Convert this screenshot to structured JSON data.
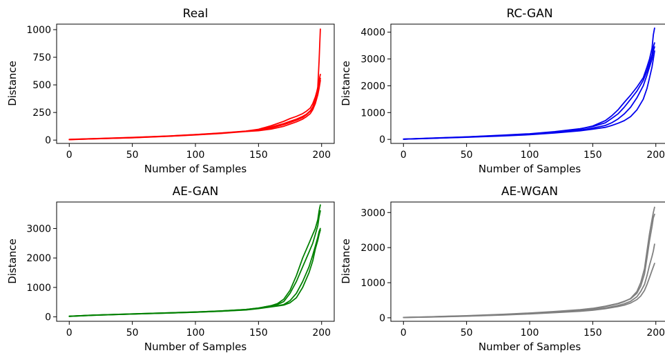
{
  "chart_data": [
    {
      "type": "line",
      "title": "Real",
      "xlabel": "Number of Samples",
      "ylabel": "Distance",
      "xlim": [
        -10,
        210
      ],
      "ylim": [
        -30,
        1050
      ],
      "xticks": [
        0,
        50,
        100,
        150,
        200
      ],
      "yticks": [
        0,
        250,
        500,
        750,
        1000
      ],
      "color": "#ff0000",
      "series": [
        {
          "x": [
            0,
            20,
            50,
            80,
            100,
            120,
            140,
            150,
            160,
            170,
            175,
            180,
            185,
            188,
            191,
            193,
            195,
            197,
            198,
            199
          ],
          "y": [
            5,
            12,
            22,
            36,
            48,
            62,
            80,
            92,
            118,
            150,
            170,
            190,
            215,
            235,
            265,
            300,
            360,
            480,
            720,
            1005
          ]
        },
        {
          "x": [
            0,
            20,
            50,
            80,
            100,
            120,
            140,
            150,
            160,
            170,
            175,
            180,
            185,
            188,
            191,
            193,
            195,
            197,
            198,
            199
          ],
          "y": [
            6,
            14,
            24,
            38,
            50,
            64,
            82,
            98,
            130,
            170,
            195,
            215,
            240,
            262,
            290,
            330,
            390,
            470,
            540,
            595
          ]
        },
        {
          "x": [
            0,
            20,
            50,
            80,
            100,
            120,
            140,
            150,
            160,
            170,
            175,
            180,
            185,
            188,
            191,
            193,
            195,
            197,
            198,
            199
          ],
          "y": [
            5,
            13,
            23,
            37,
            49,
            63,
            80,
            92,
            110,
            140,
            160,
            180,
            205,
            230,
            260,
            295,
            345,
            420,
            490,
            560
          ]
        },
        {
          "x": [
            0,
            20,
            50,
            80,
            100,
            120,
            140,
            150,
            160,
            170,
            175,
            180,
            185,
            188,
            191,
            193,
            195,
            197,
            198,
            199
          ],
          "y": [
            4,
            12,
            21,
            35,
            47,
            60,
            78,
            85,
            100,
            125,
            145,
            165,
            190,
            212,
            240,
            275,
            330,
            410,
            470,
            540
          ]
        }
      ]
    },
    {
      "type": "line",
      "title": "RC-GAN",
      "xlabel": "Number of Samples",
      "ylabel": "Distance",
      "xlim": [
        -10,
        210
      ],
      "ylim": [
        -150,
        4300
      ],
      "xticks": [
        0,
        50,
        100,
        150,
        200
      ],
      "yticks": [
        0,
        1000,
        2000,
        3000,
        4000
      ],
      "color": "#0000ee",
      "series": [
        {
          "x": [
            0,
            20,
            50,
            80,
            100,
            120,
            140,
            150,
            160,
            165,
            170,
            175,
            180,
            185,
            190,
            193,
            195,
            197,
            198,
            199
          ],
          "y": [
            10,
            40,
            90,
            150,
            200,
            280,
            390,
            500,
            700,
            880,
            1100,
            1380,
            1650,
            1950,
            2300,
            2700,
            3000,
            3400,
            3900,
            4150
          ]
        },
        {
          "x": [
            0,
            20,
            50,
            80,
            100,
            120,
            140,
            150,
            160,
            165,
            170,
            175,
            180,
            185,
            190,
            193,
            195,
            197,
            198,
            199
          ],
          "y": [
            10,
            45,
            95,
            160,
            210,
            290,
            400,
            480,
            620,
            780,
            950,
            1200,
            1500,
            1800,
            2200,
            2550,
            2850,
            3150,
            3450,
            3600
          ]
        },
        {
          "x": [
            0,
            20,
            50,
            80,
            100,
            120,
            140,
            150,
            160,
            165,
            170,
            175,
            180,
            185,
            190,
            193,
            195,
            197,
            198,
            199
          ],
          "y": [
            8,
            40,
            85,
            140,
            190,
            260,
            350,
            420,
            520,
            620,
            760,
            950,
            1200,
            1550,
            2000,
            2400,
            2700,
            3000,
            3300,
            3450
          ]
        },
        {
          "x": [
            0,
            20,
            50,
            80,
            100,
            120,
            140,
            150,
            160,
            165,
            170,
            175,
            180,
            185,
            190,
            193,
            195,
            197,
            198,
            199
          ],
          "y": [
            8,
            35,
            80,
            130,
            175,
            240,
            320,
            380,
            450,
            520,
            600,
            700,
            850,
            1100,
            1500,
            1900,
            2300,
            2700,
            3000,
            3300
          ]
        }
      ]
    },
    {
      "type": "line",
      "title": "AE-GAN",
      "xlabel": "Number of Samples",
      "ylabel": "Distance",
      "xlim": [
        -10,
        210
      ],
      "ylim": [
        -150,
        3900
      ],
      "xticks": [
        0,
        50,
        100,
        150,
        200
      ],
      "yticks": [
        0,
        1000,
        2000,
        3000
      ],
      "color": "#008000",
      "series": [
        {
          "x": [
            0,
            20,
            50,
            80,
            100,
            120,
            140,
            150,
            160,
            165,
            170,
            175,
            180,
            185,
            190,
            193,
            195,
            197,
            198,
            199
          ],
          "y": [
            20,
            60,
            100,
            140,
            165,
            200,
            250,
            300,
            380,
            450,
            600,
            900,
            1400,
            2000,
            2500,
            2800,
            3000,
            3300,
            3600,
            3800
          ]
        },
        {
          "x": [
            0,
            20,
            50,
            80,
            100,
            120,
            140,
            150,
            160,
            165,
            170,
            175,
            180,
            185,
            190,
            193,
            195,
            197,
            198,
            199
          ],
          "y": [
            20,
            60,
            100,
            140,
            165,
            200,
            250,
            300,
            380,
            420,
            520,
            800,
            1200,
            1700,
            2200,
            2500,
            2800,
            3100,
            3400,
            3600
          ]
        },
        {
          "x": [
            0,
            20,
            50,
            80,
            100,
            120,
            140,
            150,
            160,
            165,
            170,
            175,
            180,
            185,
            190,
            193,
            195,
            197,
            198,
            199
          ],
          "y": [
            18,
            55,
            95,
            130,
            160,
            195,
            240,
            290,
            350,
            380,
            420,
            550,
            800,
            1200,
            1700,
            2100,
            2400,
            2700,
            2900,
            3000
          ]
        },
        {
          "x": [
            0,
            20,
            50,
            80,
            100,
            120,
            140,
            150,
            160,
            165,
            170,
            175,
            180,
            185,
            190,
            193,
            195,
            197,
            198,
            199
          ],
          "y": [
            18,
            55,
            95,
            130,
            160,
            190,
            235,
            280,
            340,
            370,
            400,
            480,
            650,
            1000,
            1500,
            1900,
            2300,
            2600,
            2800,
            2950
          ]
        }
      ]
    },
    {
      "type": "line",
      "title": "AE-WGAN",
      "xlabel": "Number of Samples",
      "ylabel": "Distance",
      "xlim": [
        -10,
        210
      ],
      "ylim": [
        -100,
        3300
      ],
      "xticks": [
        0,
        50,
        100,
        150,
        200
      ],
      "yticks": [
        0,
        1000,
        2000,
        3000
      ],
      "color": "#808080",
      "series": [
        {
          "x": [
            0,
            20,
            50,
            80,
            100,
            120,
            140,
            150,
            160,
            170,
            175,
            180,
            185,
            188,
            191,
            193,
            195,
            197,
            198,
            199
          ],
          "y": [
            10,
            25,
            55,
            95,
            130,
            170,
            220,
            260,
            320,
            400,
            460,
            550,
            750,
            1000,
            1400,
            1900,
            2400,
            2800,
            3000,
            3150
          ]
        },
        {
          "x": [
            0,
            20,
            50,
            80,
            100,
            120,
            140,
            150,
            160,
            170,
            175,
            180,
            185,
            188,
            191,
            193,
            195,
            197,
            198,
            199
          ],
          "y": [
            10,
            28,
            60,
            100,
            135,
            180,
            230,
            270,
            330,
            410,
            470,
            540,
            700,
            900,
            1250,
            1700,
            2200,
            2600,
            2850,
            2950
          ]
        },
        {
          "x": [
            0,
            20,
            50,
            80,
            100,
            120,
            140,
            150,
            160,
            170,
            175,
            180,
            185,
            188,
            191,
            193,
            195,
            197,
            198,
            199
          ],
          "y": [
            8,
            22,
            50,
            85,
            120,
            160,
            200,
            230,
            280,
            350,
            400,
            470,
            600,
            750,
            950,
            1200,
            1500,
            1750,
            1900,
            2100
          ]
        },
        {
          "x": [
            0,
            20,
            50,
            80,
            100,
            120,
            140,
            150,
            160,
            170,
            175,
            180,
            185,
            188,
            191,
            193,
            195,
            197,
            198,
            199
          ],
          "y": [
            8,
            20,
            45,
            80,
            110,
            145,
            185,
            215,
            260,
            320,
            360,
            420,
            520,
            620,
            780,
            950,
            1150,
            1350,
            1450,
            1550
          ]
        }
      ]
    }
  ]
}
